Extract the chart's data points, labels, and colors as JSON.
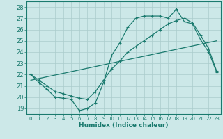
{
  "title": "",
  "xlabel": "Humidex (Indice chaleur)",
  "xlim": [
    -0.5,
    23.5
  ],
  "ylim": [
    18.5,
    28.5
  ],
  "yticks": [
    19,
    20,
    21,
    22,
    23,
    24,
    25,
    26,
    27,
    28
  ],
  "xticks": [
    0,
    1,
    2,
    3,
    4,
    5,
    6,
    7,
    8,
    9,
    10,
    11,
    12,
    13,
    14,
    15,
    16,
    17,
    18,
    19,
    20,
    21,
    22,
    23
  ],
  "bg_color": "#cce8e8",
  "grid_color": "#aacccc",
  "line_color": "#1a7a6e",
  "line1_x": [
    0,
    1,
    2,
    3,
    4,
    5,
    6,
    7,
    8,
    9,
    10,
    11,
    12,
    13,
    14,
    15,
    16,
    17,
    18,
    19,
    20,
    21,
    22,
    23
  ],
  "line1_y": [
    22.0,
    21.3,
    20.7,
    20.0,
    19.9,
    19.8,
    18.8,
    19.0,
    19.5,
    21.3,
    23.7,
    24.8,
    26.2,
    27.0,
    27.2,
    27.2,
    27.2,
    27.0,
    27.8,
    26.7,
    26.5,
    25.1,
    24.0,
    22.2
  ],
  "line2_x": [
    0,
    23
  ],
  "line2_y": [
    21.5,
    25.0
  ],
  "line3_x": [
    0,
    1,
    2,
    3,
    4,
    5,
    6,
    7,
    8,
    9,
    10,
    11,
    12,
    13,
    14,
    15,
    16,
    17,
    18,
    19,
    20,
    21,
    22,
    23
  ],
  "line3_y": [
    22.0,
    21.5,
    21.0,
    20.5,
    20.3,
    20.1,
    19.9,
    19.8,
    20.5,
    21.5,
    22.5,
    23.2,
    24.0,
    24.5,
    25.0,
    25.5,
    26.0,
    26.5,
    26.8,
    27.0,
    26.6,
    25.5,
    24.3,
    22.3
  ]
}
